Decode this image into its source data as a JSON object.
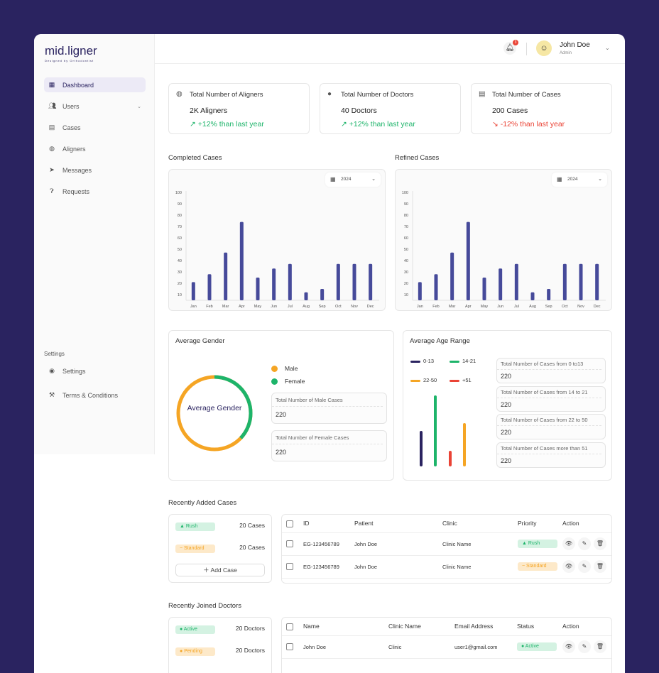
{
  "brand": {
    "name": "mid.ligner",
    "tagline": "Designed by Orthodontist"
  },
  "sidebar": {
    "items": [
      {
        "label": "Dashboard",
        "icon": "grid-icon",
        "active": true
      },
      {
        "label": "Users",
        "icon": "users-icon",
        "has_submenu": true
      },
      {
        "label": "Cases",
        "icon": "cases-icon"
      },
      {
        "label": "Aligners",
        "icon": "aligner-icon"
      },
      {
        "label": "Messages",
        "icon": "send-icon"
      },
      {
        "label": "Requests",
        "icon": "question-icon"
      }
    ],
    "settings_section": "Settings",
    "settings_items": [
      {
        "label": "Settings",
        "icon": "gear-icon"
      },
      {
        "label": "Terms & Conditions",
        "icon": "gavel-icon"
      }
    ]
  },
  "header": {
    "notifications": "3",
    "user_name": "John Doe",
    "user_role": "Admin"
  },
  "stats": [
    {
      "title": "Total Number of Aligners",
      "value": "2K Aligners",
      "delta": "+12% than last year",
      "trend": "up",
      "icon": "aligner-icon"
    },
    {
      "title": "Total Number of Doctors",
      "value": "40 Doctors",
      "delta": "+12% than last year",
      "trend": "up",
      "icon": "person-icon"
    },
    {
      "title": "Total Number of Cases",
      "value": "200 Cases",
      "delta": "-12% than last year",
      "trend": "down",
      "icon": "cases-icon"
    }
  ],
  "colors": {
    "bar": "#464a9a",
    "navy": "#2a2360",
    "green": "#1db46a",
    "orange": "#f5a524",
    "red": "#ea4335"
  },
  "chart_data": [
    {
      "type": "bar",
      "title": "Completed Cases",
      "year": "2024",
      "categories": [
        "Jan",
        "Feb",
        "Mar",
        "Apr",
        "May",
        "Jun",
        "Jul",
        "Aug",
        "Sep",
        "Oct",
        "Nov",
        "Dec"
      ],
      "values": [
        21,
        28,
        47,
        74,
        25,
        33,
        37,
        12,
        15,
        37,
        37,
        37
      ],
      "yticks": [
        10,
        20,
        30,
        40,
        50,
        60,
        70,
        80,
        90,
        100
      ],
      "ylim": [
        5,
        100
      ]
    },
    {
      "type": "bar",
      "title": "Refined Cases",
      "year": "2024",
      "categories": [
        "Jan",
        "Feb",
        "Mar",
        "Apr",
        "May",
        "Jun",
        "Jul",
        "Aug",
        "Sep",
        "Oct",
        "Nov",
        "Dec"
      ],
      "values": [
        21,
        28,
        47,
        74,
        25,
        33,
        37,
        12,
        15,
        37,
        37,
        37
      ],
      "yticks": [
        10,
        20,
        30,
        40,
        50,
        60,
        70,
        80,
        90,
        100
      ],
      "ylim": [
        5,
        100
      ]
    },
    {
      "type": "pie",
      "title": "Average Gender",
      "center_label": "Average Gender",
      "series": [
        {
          "name": "Male",
          "value": 63
        },
        {
          "name": "Female",
          "value": 37
        }
      ]
    },
    {
      "type": "bar",
      "title": "Average Age Range",
      "categories": [
        "0-13",
        "14-21",
        "+51",
        "22-50"
      ],
      "values": [
        50,
        100,
        22,
        61
      ]
    }
  ],
  "gender": {
    "legend": [
      "Male",
      "Female"
    ],
    "boxes": [
      {
        "label": "Total Number of Male Cases",
        "value": "220"
      },
      {
        "label": "Total Number of Female Cases",
        "value": "220"
      }
    ]
  },
  "age": {
    "legend": [
      "0-13",
      "14-21",
      "22-50",
      "+51"
    ],
    "boxes": [
      {
        "label": "Total Number of Cases from 0 to13",
        "value": "220"
      },
      {
        "label": "Total Number of Cases from 14 to 21",
        "value": "220"
      },
      {
        "label": "Total Number of Cases from 22 to 50",
        "value": "220"
      },
      {
        "label": "Total Number of Cases more than 51",
        "value": "220"
      }
    ]
  },
  "cases": {
    "title": "Recently Added Cases",
    "summary": [
      {
        "label": "Rush",
        "count": "20 Cases"
      },
      {
        "label": "Standard",
        "count": "20 Cases"
      }
    ],
    "add_label": "Add Case",
    "columns": [
      "ID",
      "Patient",
      "Clinic",
      "Priority",
      "Action"
    ],
    "rows": [
      {
        "id": "EG-123456789",
        "patient": "John Doe",
        "clinic": "Clinic Name",
        "priority": "Rush"
      },
      {
        "id": "EG-123456789",
        "patient": "John Doe",
        "clinic": "Clinic Name",
        "priority": "Standard"
      }
    ]
  },
  "doctors": {
    "title": "Recently Joined Doctors",
    "summary": [
      {
        "label": "Active",
        "count": "20 Doctors"
      },
      {
        "label": "Pending",
        "count": "20 Doctors"
      }
    ],
    "columns": [
      "Name",
      "Clinic Name",
      "Email Address",
      "Status",
      "Action"
    ],
    "rows": [
      {
        "name": "John Doe",
        "clinic": "Clinic",
        "email": "user1@gmail.com",
        "status": "Active"
      }
    ]
  }
}
